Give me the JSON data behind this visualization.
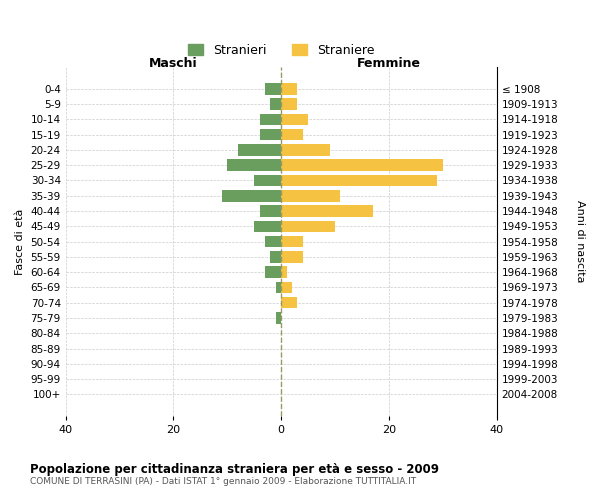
{
  "age_groups": [
    "0-4",
    "5-9",
    "10-14",
    "15-19",
    "20-24",
    "25-29",
    "30-34",
    "35-39",
    "40-44",
    "45-49",
    "50-54",
    "55-59",
    "60-64",
    "65-69",
    "70-74",
    "75-79",
    "80-84",
    "85-89",
    "90-94",
    "95-99",
    "100+"
  ],
  "birth_years": [
    "2004-2008",
    "1999-2003",
    "1994-1998",
    "1989-1993",
    "1984-1988",
    "1979-1983",
    "1974-1978",
    "1969-1973",
    "1964-1968",
    "1959-1963",
    "1954-1958",
    "1949-1953",
    "1944-1948",
    "1939-1943",
    "1934-1938",
    "1929-1933",
    "1924-1928",
    "1919-1923",
    "1914-1918",
    "1909-1913",
    "≤ 1908"
  ],
  "males": [
    3,
    2,
    4,
    4,
    8,
    10,
    5,
    11,
    4,
    5,
    3,
    2,
    3,
    1,
    0,
    1,
    0,
    0,
    0,
    0,
    0
  ],
  "females": [
    3,
    3,
    5,
    4,
    9,
    30,
    29,
    11,
    17,
    10,
    4,
    4,
    1,
    2,
    3,
    0,
    0,
    0,
    0,
    0,
    0
  ],
  "male_color": "#6a9e5e",
  "female_color": "#f5c242",
  "background_color": "#ffffff",
  "grid_color": "#cccccc",
  "centerline_color": "#999966",
  "title": "Popolazione per cittadinanza straniera per età e sesso - 2009",
  "subtitle": "COMUNE DI TERRASINI (PA) - Dati ISTAT 1° gennaio 2009 - Elaborazione TUTTITALIA.IT",
  "xlabel_left": "Maschi",
  "xlabel_right": "Femmine",
  "ylabel_left": "Fasce di età",
  "ylabel_right": "Anni di nascita",
  "legend_male": "Stranieri",
  "legend_female": "Straniere",
  "xlim": 40,
  "bar_height": 0.75
}
